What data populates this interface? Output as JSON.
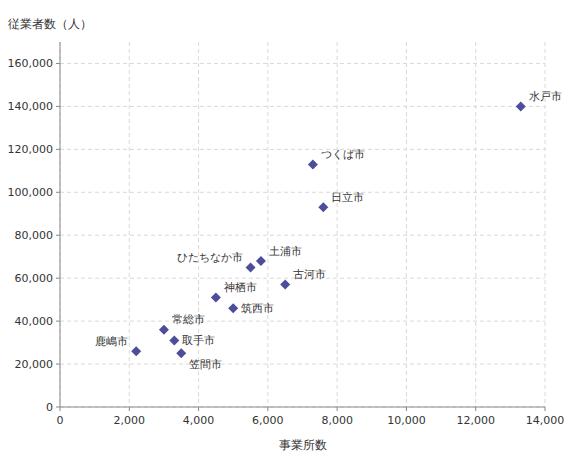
{
  "chart_data": {
    "type": "scatter",
    "x": [
      13300,
      7300,
      7600,
      5500,
      5800,
      6500,
      4500,
      5000,
      3000,
      3300,
      2200,
      3500
    ],
    "values": [
      140000,
      113000,
      93000,
      65000,
      68000,
      57000,
      51000,
      46000,
      36000,
      31000,
      26000,
      25000
    ],
    "annotations": [
      "水戸市",
      "つくば市",
      "日立市",
      "ひたちなか市",
      "土浦市",
      "古河市",
      "神栖市",
      "筑西市",
      "常総市",
      "取手市",
      "鹿嶋市",
      "笠間市"
    ],
    "x_label": "事業所数",
    "y_label": "従業者数（人）",
    "xlim": [
      0,
      14000
    ],
    "ylim": [
      0,
      170000
    ],
    "xticks": [
      0,
      {
        "value": 2000,
        "label": "2,000"
      },
      {
        "value": 4000,
        "label": "4,000"
      },
      {
        "value": 6000,
        "label": "6,000"
      },
      {
        "value": 8000,
        "label": "8,000"
      },
      {
        "value": 10000,
        "label": "10,000"
      },
      {
        "value": 12000,
        "label": "12,000"
      },
      {
        "value": 14000,
        "label": "14,000"
      }
    ],
    "yticks": [
      0,
      {
        "value": 20000,
        "label": "20,000"
      },
      {
        "value": 40000,
        "label": "40,000"
      },
      {
        "value": 60000,
        "label": "60,000"
      },
      {
        "value": 80000,
        "label": "80,000"
      },
      {
        "value": 100000,
        "label": "100,000"
      },
      {
        "value": 120000,
        "label": "120,000"
      },
      {
        "value": 140000,
        "label": "140,000"
      },
      {
        "value": 160000,
        "label": "160,000"
      }
    ],
    "color": "#4d4d99",
    "marker": "diamond",
    "grid": true
  }
}
